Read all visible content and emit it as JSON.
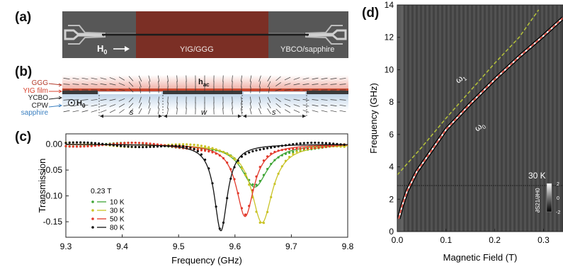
{
  "panels": {
    "a": {
      "label": "(a)",
      "h0_label": "H",
      "h0_sub": "0",
      "yig_label": "YIG/GGG",
      "ybco_label": "YBCO/sapphire",
      "colors": {
        "chip": "#5a5a5a",
        "yig": "#7a2e24",
        "cpw": "#c9c9c9"
      }
    },
    "b": {
      "label": "(b)",
      "layer_labels": [
        {
          "text": "GGG",
          "color": "#b33a2a"
        },
        {
          "text": "YIG film",
          "color": "#d8432f"
        },
        {
          "text": "YCBO CPW",
          "color": "#222222"
        },
        {
          "text": "sapphire",
          "color": "#3a7fc0"
        }
      ],
      "hac_label": "h",
      "hac_sub": "ac",
      "h0_label": "H",
      "h0_sub": "0",
      "dim_s1": "s",
      "dim_w": "w",
      "dim_s2": "s"
    },
    "c": {
      "label": "(c)",
      "legend_title": "0.23 T"
    },
    "d": {
      "label": "(d)",
      "temp_label": "30 K",
      "omega1": "ω",
      "omega1_sub": "1",
      "omega0": "ω",
      "omega0_sub": "0",
      "colorbar_label": "∂S21/∂H0",
      "colorbar_ticks": [
        "2",
        "0",
        "-2"
      ]
    }
  },
  "chart_data": [
    {
      "type": "line",
      "panel": "c",
      "xlabel": "Frequency (GHz)",
      "ylabel": "Transmission",
      "xlim": [
        9.3,
        9.8
      ],
      "ylim": [
        -0.18,
        0.02
      ],
      "xticks": [
        "9.3",
        "9.4",
        "9.5",
        "9.6",
        "9.7",
        "9.8"
      ],
      "yticks": [
        "0.00",
        "-0.05",
        "-0.10",
        "-0.15"
      ],
      "legend_title": "0.23 T",
      "series": [
        {
          "name": "10 K",
          "color": "#3fa535",
          "center": 9.635,
          "depth": 0.083,
          "width": 0.055
        },
        {
          "name": "30 K",
          "color": "#c9c326",
          "center": 9.648,
          "depth": 0.152,
          "width": 0.045
        },
        {
          "name": "50 K",
          "color": "#e2382a",
          "center": 9.618,
          "depth": 0.14,
          "width": 0.038
        },
        {
          "name": "80 K",
          "color": "#111111",
          "center": 9.575,
          "depth": 0.168,
          "width": 0.028
        }
      ]
    },
    {
      "type": "heatmap",
      "panel": "d",
      "xlabel": "Magnetic Field (T)",
      "ylabel": "Frequency (GHz)",
      "xlim": [
        0,
        0.34
      ],
      "ylim": [
        0,
        14
      ],
      "xticks": [
        "0.0",
        "0.1",
        "0.2",
        "0.3"
      ],
      "yticks": [
        "0",
        "2",
        "4",
        "6",
        "8",
        "10",
        "12",
        "14"
      ],
      "grid": false,
      "curves": [
        {
          "name": "ω1",
          "style": "dashed",
          "color": "#b7c43a",
          "points": [
            [
              0,
              3.5
            ],
            [
              0.05,
              5.2
            ],
            [
              0.1,
              7.0
            ],
            [
              0.15,
              8.7
            ],
            [
              0.2,
              10.4
            ],
            [
              0.25,
              12.0
            ],
            [
              0.29,
              13.7
            ]
          ]
        },
        {
          "name": "ω0",
          "style": "dashed",
          "color": "#e2382a",
          "points": [
            [
              0.003,
              0.8
            ],
            [
              0.01,
              1.6
            ],
            [
              0.02,
              2.5
            ],
            [
              0.04,
              3.7
            ],
            [
              0.07,
              5.0
            ],
            [
              0.1,
              6.3
            ],
            [
              0.15,
              7.9
            ],
            [
              0.2,
              9.4
            ],
            [
              0.25,
              10.8
            ],
            [
              0.3,
              12.1
            ],
            [
              0.34,
              13.2
            ]
          ]
        }
      ]
    }
  ]
}
